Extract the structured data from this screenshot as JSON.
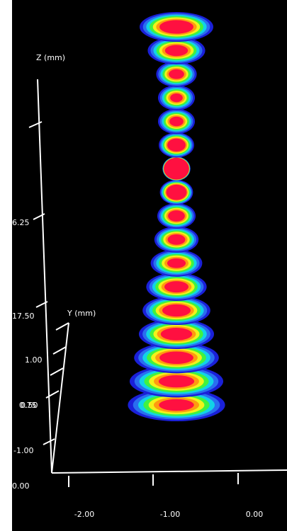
{
  "chart_data": {
    "type": "3d-beam-profile",
    "axes": {
      "z": {
        "title": "Z (mm)",
        "ticks": [
          "6.25"
        ]
      },
      "y": {
        "title": "Y (mm)",
        "ticks": [
          "17.50",
          "1.00",
          "0.75",
          "0.50",
          "-1.00"
        ]
      },
      "x": {
        "ticks": [
          "-2.00",
          "-1.00",
          "0.00"
        ]
      },
      "origin": "0.00"
    },
    "colormap": [
      "#ff1040",
      "#ff9a10",
      "#f2f21a",
      "#40f240",
      "#12d2e6",
      "#2a6ef0",
      "#1a20d8"
    ],
    "slices": [
      {
        "size": 1.0,
        "core": 0.46
      },
      {
        "size": 0.78,
        "core": 0.4
      },
      {
        "size": 0.55,
        "core": 0.38
      },
      {
        "size": 0.5,
        "core": 0.34
      },
      {
        "size": 0.5,
        "core": 0.38
      },
      {
        "size": 0.48,
        "core": 0.52
      },
      {
        "size": 0.38,
        "core": 0.9
      },
      {
        "size": 0.45,
        "core": 0.62
      },
      {
        "size": 0.52,
        "core": 0.44
      },
      {
        "size": 0.6,
        "core": 0.4
      },
      {
        "size": 0.7,
        "core": 0.36
      },
      {
        "size": 0.82,
        "core": 0.4
      },
      {
        "size": 0.92,
        "core": 0.42
      },
      {
        "size": 1.02,
        "core": 0.42
      },
      {
        "size": 1.15,
        "core": 0.4
      },
      {
        "size": 1.27,
        "core": 0.38
      },
      {
        "size": 1.32,
        "core": 0.36
      }
    ]
  }
}
